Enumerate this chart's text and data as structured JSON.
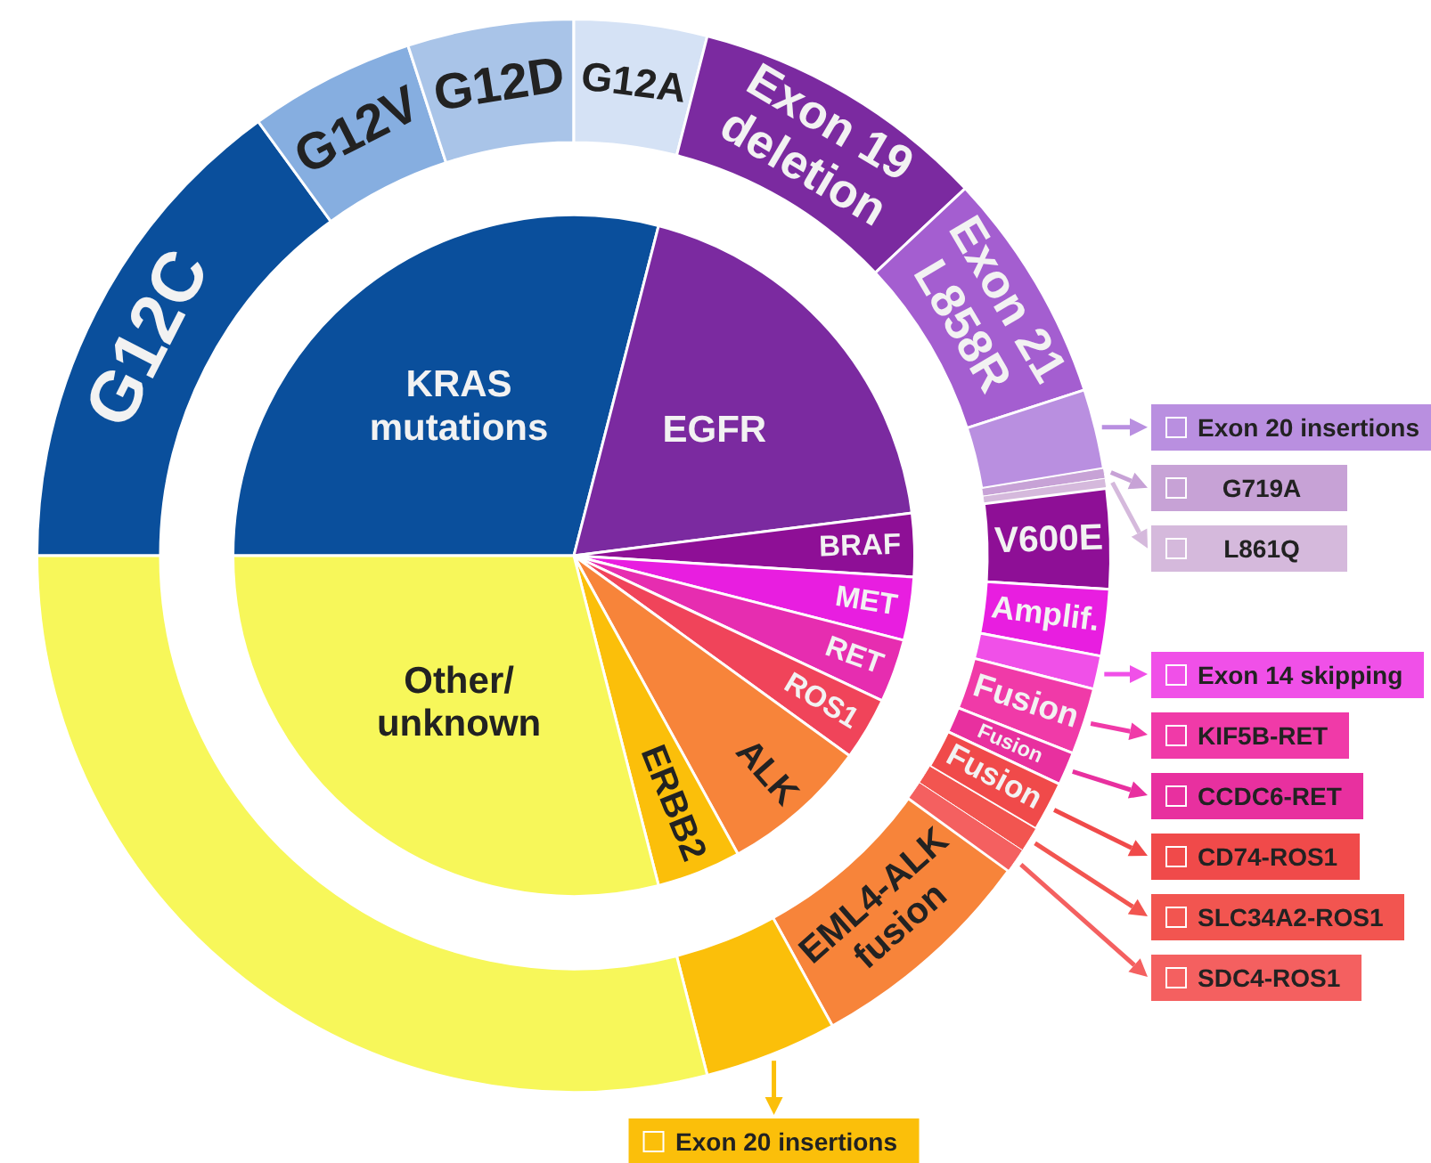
{
  "chart_data": [
    {
      "type": "pie",
      "categories": [
        "KRAS mutations",
        "EGFR",
        "BRAF",
        "MET",
        "RET",
        "ROS1",
        "ALK",
        "ERBB2",
        "Other/unknown"
      ],
      "values": [
        29,
        19,
        3,
        3,
        3,
        3,
        7,
        4,
        29
      ],
      "colors": [
        "#0a4f9c",
        "#7b2aa0",
        "#8e0f96",
        "#e81ee0",
        "#e62db0",
        "#f0445a",
        "#f7843a",
        "#fbbf0a",
        "#f7f75a"
      ]
    },
    {
      "type": "donut",
      "categories": [
        "G12C",
        "G12V",
        "G12D",
        "G12A",
        "Exon 19 deletion",
        "Exon 21 L858R",
        "Exon 20 insertions",
        "G719A",
        "L861Q",
        "V600E",
        "Amplif.",
        "Exon 14 skipping",
        "KIF5B-RET",
        "CCDC6-RET",
        "CD74-ROS1",
        "SLC34A2-ROS1",
        "SDC4-ROS1",
        "EML4-ALK fusion",
        "Exon 20 insertions",
        null
      ],
      "legend": "right",
      "values": [
        15,
        5,
        5,
        4,
        9,
        7,
        2.4,
        0.3,
        0.3,
        3,
        2,
        1,
        2,
        1,
        1.5,
        0.75,
        0.75,
        7,
        4,
        29
      ],
      "colors": [
        "#0a4f9c",
        "#86aee0",
        "#a9c4e8",
        "#d5e2f5",
        "#7b2aa0",
        "#a45ed0",
        "#b98fe0",
        "#c7a2d6",
        "#d5b9dc",
        "#8e0f96",
        "#e81ee0",
        "#f050e8",
        "#f03aa8",
        "#e8309f",
        "#f04a4a",
        "#f25550",
        "#f46060",
        "#f7843a",
        "#fbbf0a",
        "#f7f75a"
      ],
      "annotations": [
        {
          "text": "Fusion",
          "x": "KIF5B-RET"
        },
        {
          "text": "Fusion",
          "x": "CCDC6-RET"
        },
        {
          "text": "Fusion",
          "x": "CD74-ROS1"
        }
      ]
    }
  ]
}
